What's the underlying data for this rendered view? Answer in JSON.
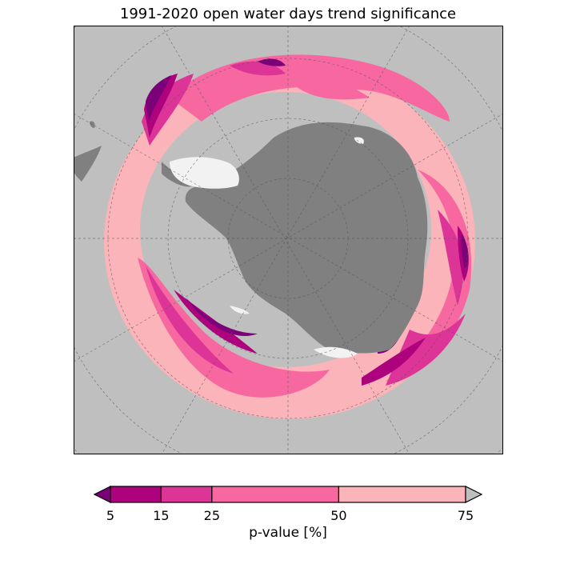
{
  "chart_data": {
    "type": "heatmap",
    "title": "1991-2020 open water days trend significance",
    "projection": "south polar stereographic",
    "colorbar": {
      "label": "p-value [%]",
      "ticks": [
        5,
        15,
        25,
        50,
        75
      ],
      "bins": [
        {
          "from": null,
          "to": 5,
          "color": "#7a0177"
        },
        {
          "from": 5,
          "to": 15,
          "color": "#ae017e"
        },
        {
          "from": 15,
          "to": 25,
          "color": "#dd3497"
        },
        {
          "from": 25,
          "to": 50,
          "color": "#f768a1"
        },
        {
          "from": 50,
          "to": 75,
          "color": "#fbb4b9"
        },
        {
          "from": 75,
          "to": null,
          "color": "#bfbfbf"
        }
      ],
      "extend": "both"
    },
    "land_color": "#808080",
    "ice_shelf_color": "#f2f2f2",
    "ocean_background_color": "#bfbfbf",
    "gridlines": true
  }
}
